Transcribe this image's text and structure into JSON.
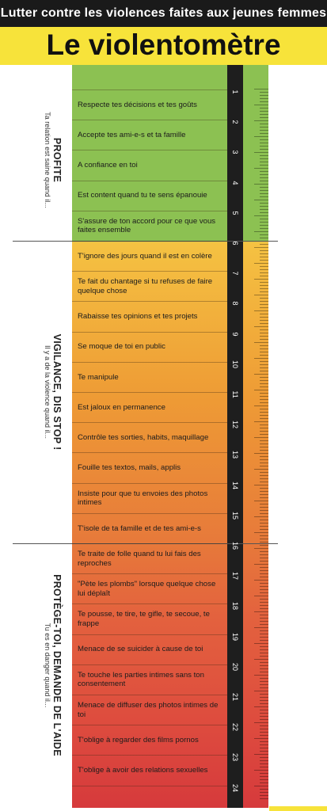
{
  "header": {
    "subtitle": "Lutter contre les violences faites aux jeunes femmes",
    "title": "Le violentomètre"
  },
  "sections": [
    {
      "title": "PROFITE",
      "subtitle": "Ta relation est saine quand il..."
    },
    {
      "title": "VIGILANCE, DIS STOP !",
      "subtitle": "Il y a de la violence quand il..."
    },
    {
      "title": "PROTÈGE-TOI, DEMANDE DE L'AIDE",
      "subtitle": "Tu es en danger quand il..."
    }
  ],
  "items": [
    "Respecte tes décisions et tes goûts",
    "Accepte tes ami-e-s et ta famille",
    "A confiance en toi",
    "Est content quand tu te sens épanouie",
    "S'assure de ton accord pour ce que vous faites ensemble",
    "T'ignore des jours quand il est en colère",
    "Te fait du chantage si tu refuses de faire quelque chose",
    "Rabaisse tes opinions et tes projets",
    "Se moque de toi en public",
    "Te manipule",
    "Est jaloux en permanence",
    "Contrôle tes sorties, habits, maquillage",
    "Fouille tes textos, mails, applis",
    "Insiste pour que tu envoies des photos intimes",
    "T'isole de ta famille et de tes ami-e-s",
    "Te traite de folle quand tu lui fais des reproches",
    "\"Pète les plombs\" lorsque quelque chose lui déplaît",
    "Te pousse, te tire, te gifle, te secoue, te frappe",
    "Menace de se suicider à cause de toi",
    "Te touche les parties intimes sans ton consentement",
    "Menace de diffuser des photos intimes de toi",
    "T'oblige à regarder des films pornos",
    "T'oblige à avoir des relations sexuelles"
  ],
  "scale": [
    "1",
    "2",
    "3",
    "4",
    "5",
    "6",
    "7",
    "8",
    "9",
    "10",
    "11",
    "12",
    "13",
    "14",
    "15",
    "16",
    "17",
    "18",
    "19",
    "20",
    "21",
    "22",
    "23",
    "24"
  ],
  "colors": {
    "green": "#8cc152",
    "yellow": "#f5c242",
    "orange": "#e77a3a",
    "red": "#d63a3c",
    "header_yellow": "#f7e33a",
    "scale_black": "#1e1e1e"
  }
}
